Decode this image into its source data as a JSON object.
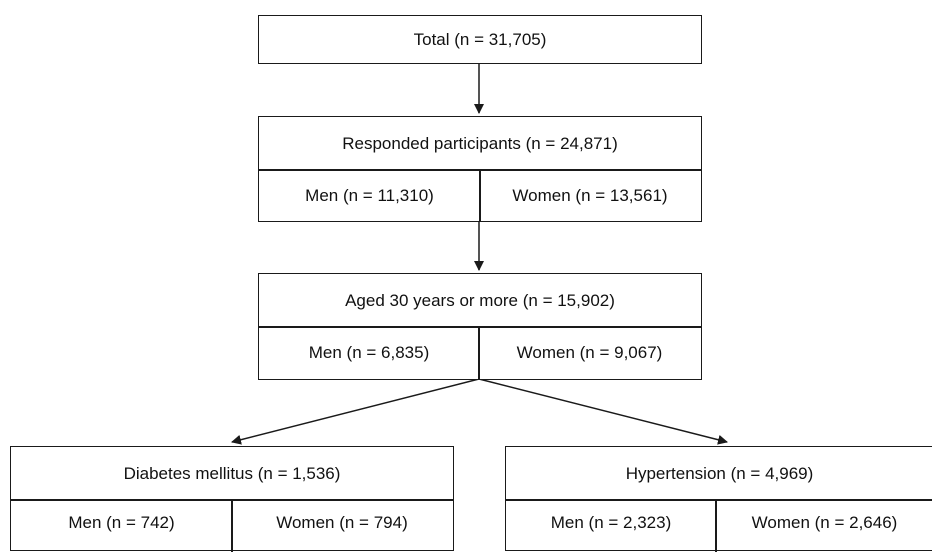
{
  "total": {
    "label": "Total (n = 31,705)"
  },
  "responded": {
    "label": "Responded participants (n = 24,871)",
    "men": "Men (n = 11,310)",
    "women": "Women (n = 13,561)"
  },
  "aged": {
    "label": "Aged 30 years or more (n = 15,902)",
    "men": "Men (n = 6,835)",
    "women": "Women (n = 9,067)"
  },
  "diabetes": {
    "label": "Diabetes mellitus (n = 1,536)",
    "men": "Men (n = 742)",
    "women": "Women (n = 794)"
  },
  "hypertension": {
    "label": "Hypertension (n = 4,969)",
    "men": "Men (n = 2,323)",
    "women": "Women (n = 2,646)"
  }
}
